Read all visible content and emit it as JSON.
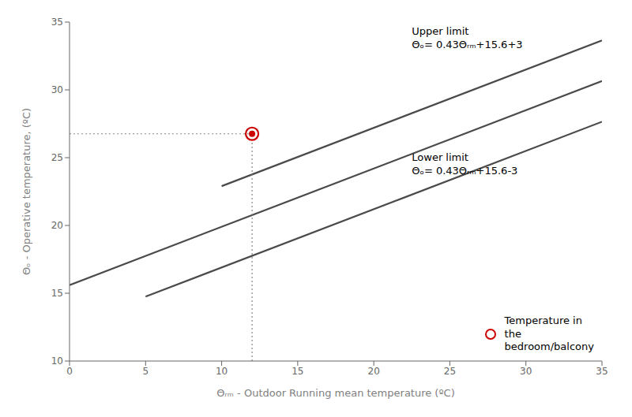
{
  "chart_data": {
    "type": "line",
    "xlabel": "Θᵣₘ - Outdoor Running mean temperature (ºC)",
    "ylabel": "Θₒ - Operative temperature, (ºC)",
    "xlim": [
      0,
      35
    ],
    "ylim": [
      10,
      35
    ],
    "xticks": [
      0,
      5,
      10,
      15,
      20,
      25,
      30,
      35
    ],
    "yticks": [
      10,
      15,
      20,
      25,
      30,
      35
    ],
    "grid": false,
    "legend": "lower right",
    "series": [
      {
        "type": "line",
        "color": "#4a4a4a",
        "x": [
          10,
          35
        ],
        "values": [
          22.9,
          33.65
        ]
      },
      {
        "type": "line",
        "color": "#4a4a4a",
        "x": [
          0,
          35
        ],
        "values": [
          15.6,
          30.65
        ]
      },
      {
        "type": "line",
        "color": "#4a4a4a",
        "x": [
          5,
          35
        ],
        "values": [
          14.75,
          27.65
        ]
      },
      {
        "type": "line",
        "line_style": "dotted",
        "color": "#888888",
        "x": [
          0,
          12
        ],
        "values": [
          26.76,
          26.76
        ]
      },
      {
        "type": "line",
        "line_style": "dotted",
        "color": "#888888",
        "x": [
          12,
          12
        ],
        "values": [
          10,
          26.76
        ]
      },
      {
        "name": "Temperature in\nthe\nbedroom/balcony",
        "type": "scatter",
        "marker": "o",
        "color": "#cc0000",
        "x": [
          12
        ],
        "values": [
          26.76
        ]
      }
    ],
    "annotations": [
      {
        "text": "Upper limit\nΘₒ= 0.43Θᵣₘ+15.6+3",
        "x": 22.5,
        "y": 34.8
      },
      {
        "text": "Lower limit\nΘₒ= 0.43Θᵣₘ+15.6-3",
        "x": 22.5,
        "y": 25.5
      }
    ]
  }
}
